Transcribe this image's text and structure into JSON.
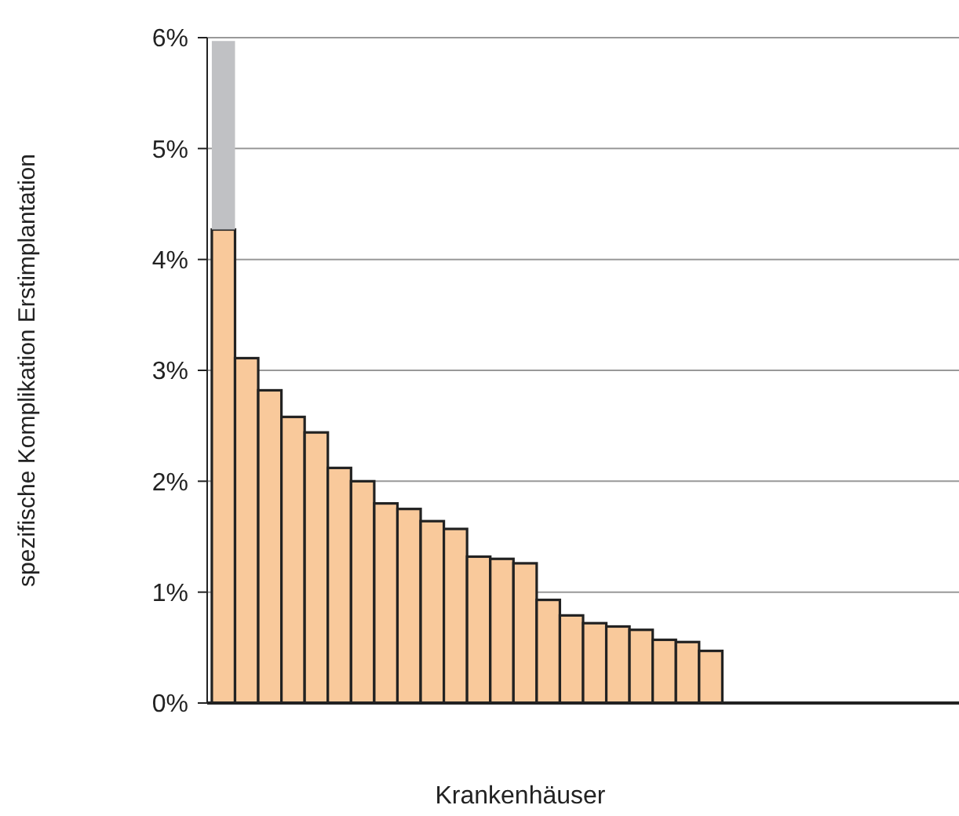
{
  "chart_data": {
    "type": "bar",
    "stacked": true,
    "xlabel": "Krankenhäuser",
    "ylabel": "spezifische Komplikation Erstimplantation",
    "categories": [
      null,
      null,
      null,
      null,
      null,
      null,
      null,
      null,
      null,
      null,
      null,
      null,
      null,
      null,
      null,
      null,
      null,
      null,
      null,
      null,
      null,
      null,
      null,
      null,
      null,
      null,
      null,
      null,
      null,
      null,
      null,
      null
    ],
    "series": [
      {
        "color": "#f9c99b",
        "values": [
          4.27,
          3.11,
          2.82,
          2.58,
          2.44,
          2.12,
          2.0,
          1.8,
          1.75,
          1.64,
          1.57,
          1.32,
          1.3,
          1.26,
          0.93,
          0.79,
          0.72,
          0.69,
          0.66,
          0.57,
          0.55,
          0.47,
          null,
          null,
          null,
          null,
          null,
          null,
          null,
          null,
          null,
          null
        ]
      },
      {
        "color": "#c0c1c4",
        "values": [
          1.7,
          null,
          null,
          null,
          null,
          null,
          null,
          null,
          null,
          null,
          null,
          null,
          null,
          null,
          null,
          null,
          null,
          null,
          null,
          null,
          null,
          null,
          null,
          null,
          null,
          null,
          null,
          null,
          null,
          null,
          null,
          null
        ]
      }
    ],
    "ylim": [
      0,
      6
    ],
    "yticks": [
      {
        "value": 0,
        "label": "0%"
      },
      {
        "value": 1,
        "label": "1%"
      },
      {
        "value": 2,
        "label": "2%"
      },
      {
        "value": 3,
        "label": "3%"
      },
      {
        "value": 4,
        "label": "4%"
      },
      {
        "value": 5,
        "label": "5%"
      },
      {
        "value": 6,
        "label": "6%"
      }
    ],
    "grid": "y"
  }
}
